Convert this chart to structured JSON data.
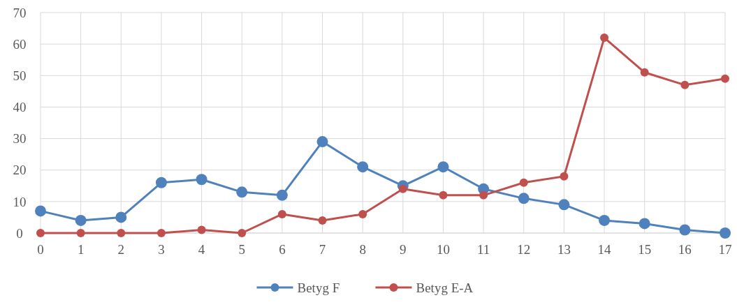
{
  "chart_data": {
    "type": "line",
    "x": [
      0,
      1,
      2,
      3,
      4,
      5,
      6,
      7,
      8,
      9,
      10,
      11,
      12,
      13,
      14,
      15,
      16,
      17
    ],
    "xlim": [
      0,
      17
    ],
    "xticks": [
      0,
      1,
      2,
      3,
      4,
      5,
      6,
      7,
      8,
      9,
      10,
      11,
      12,
      13,
      14,
      15,
      16,
      17
    ],
    "ylim": [
      0,
      70
    ],
    "yticks": [
      0,
      10,
      20,
      30,
      40,
      50,
      60,
      70
    ],
    "grid": true,
    "legend": "bottom",
    "marker": "circle",
    "line_style": "solid",
    "series": [
      {
        "name": "Betyg F",
        "color": "#4f81bd",
        "values": [
          7,
          4,
          5,
          16,
          17,
          13,
          12,
          29,
          21,
          15,
          21,
          14,
          11,
          9,
          4,
          3,
          1,
          0
        ]
      },
      {
        "name": "Betyg E-A",
        "color": "#c0504d",
        "values": [
          0,
          0,
          0,
          0,
          1,
          0,
          6,
          4,
          6,
          14,
          12,
          12,
          16,
          18,
          62,
          51,
          47,
          49
        ]
      }
    ]
  }
}
